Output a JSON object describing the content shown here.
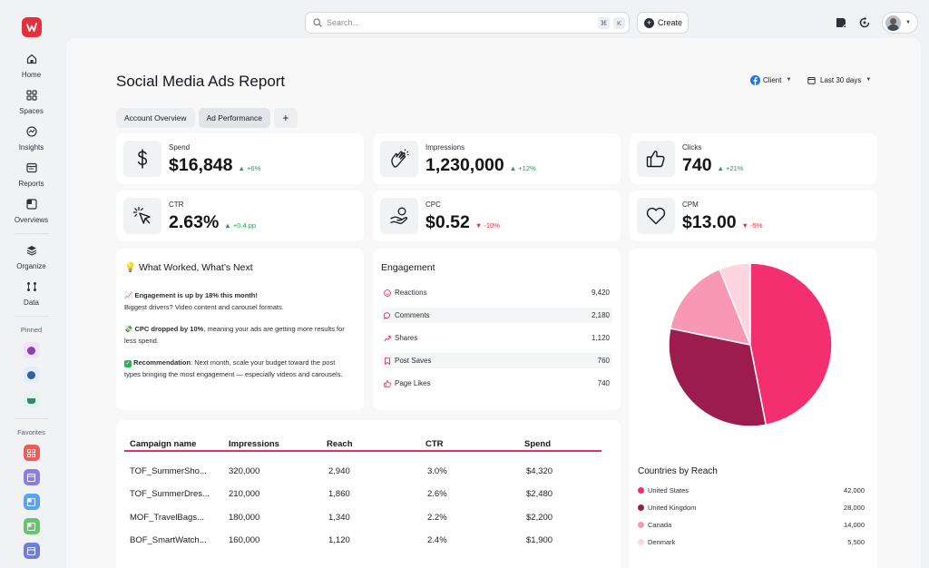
{
  "sidebar": {
    "nav": [
      {
        "label": "Home",
        "icon": "home-icon"
      },
      {
        "label": "Spaces",
        "icon": "spaces-icon"
      },
      {
        "label": "Insights",
        "icon": "insights-icon"
      },
      {
        "label": "Reports",
        "icon": "reports-icon"
      },
      {
        "label": "Overviews",
        "icon": "overviews-icon"
      }
    ],
    "nav2": [
      {
        "label": "Organize",
        "icon": "organize-icon"
      },
      {
        "label": "Data",
        "icon": "data-icon"
      }
    ],
    "pinned_label": "Pinned",
    "favorites_label": "Favorites",
    "pinned_colors": [
      "#efe3f7",
      "#e3ecf8",
      "#e3f4ee"
    ],
    "favorite_colors": [
      "#f05a5a",
      "#8e7bea",
      "#5aa3f0",
      "#63c56c",
      "#6d7fd8"
    ]
  },
  "topbar": {
    "search_placeholder": "Search...",
    "shortcut_key1": "⌘",
    "shortcut_key2": "K",
    "create_label": "Create"
  },
  "page": {
    "title": "Social Media Ads Report",
    "client_filter": "Client",
    "date_filter": "Last 30 days",
    "tabs": [
      "Account Overview",
      "Ad Performance"
    ],
    "add_tab": "+"
  },
  "kpis": [
    {
      "label": "Spend",
      "value": "$16,848",
      "delta": "+6%",
      "direction": "up",
      "icon": "dollar-icon"
    },
    {
      "label": "Impressions",
      "value": "1,230,000",
      "delta": "+12%",
      "direction": "up",
      "icon": "clap-icon"
    },
    {
      "label": "Clicks",
      "value": "740",
      "delta": "+21%",
      "direction": "up",
      "icon": "thumbs-up-icon"
    },
    {
      "label": "CTR",
      "value": "2.63%",
      "delta": "+0.4 pp",
      "direction": "up",
      "icon": "cursor-click-icon"
    },
    {
      "label": "CPC",
      "value": "$0.52",
      "delta": "-10%",
      "direction": "down",
      "icon": "hand-coin-icon"
    },
    {
      "label": "CPM",
      "value": "$13.00",
      "delta": "-5%",
      "direction": "down",
      "icon": "heart-icon"
    }
  ],
  "insights": {
    "title": "What Worked, What’s Next",
    "p1_bold": "Engagement is up by 18% this month!",
    "p1_rest": "Biggest drivers? Video content and carousel formats.",
    "p2_bold": "CPC dropped by 10%",
    "p2_rest": ", meaning your ads are getting more results for less spend.",
    "p3_bold": "Recommendation",
    "p3_rest": ": Next month, scale your budget toward the post types bringing the most engagement — especially videos and carousels."
  },
  "engagement": {
    "title": "Engagement",
    "rows": [
      {
        "label": "Reactions",
        "value": "9,420"
      },
      {
        "label": "Comments",
        "value": "2,180"
      },
      {
        "label": "Shares",
        "value": "1,120"
      },
      {
        "label": "Post Saves",
        "value": "760"
      },
      {
        "label": "Page Likes",
        "value": "740"
      }
    ]
  },
  "table": {
    "columns": [
      "Campaign name",
      "Impressions",
      "Reach",
      "CTR",
      "Spend"
    ],
    "rows": [
      [
        "TOF_SummerSho...",
        "320,000",
        "2,940",
        "3.0%",
        "$4,320"
      ],
      [
        "TOF_SummerDres...",
        "210,000",
        "1,860",
        "2.6%",
        "$2,480"
      ],
      [
        "MOF_TravelBags...",
        "180,000",
        "1,340",
        "2.2%",
        "$2,200"
      ],
      [
        "BOF_SmartWatch...",
        "160,000",
        "1,120",
        "2.4%",
        "$1,900"
      ]
    ]
  },
  "chart_data": {
    "type": "pie",
    "title": "Countries by Reach",
    "categories": [
      "United States",
      "United Kingdom",
      "Canada",
      "Denmark"
    ],
    "values": [
      42000,
      28000,
      14000,
      5500
    ],
    "value_labels": [
      "42,000",
      "28,000",
      "14,000",
      "5,500"
    ],
    "colors": [
      "#f42f6f",
      "#9c1c4e",
      "#f998b4",
      "#fdd5e0"
    ],
    "legend_position": "bottom"
  }
}
